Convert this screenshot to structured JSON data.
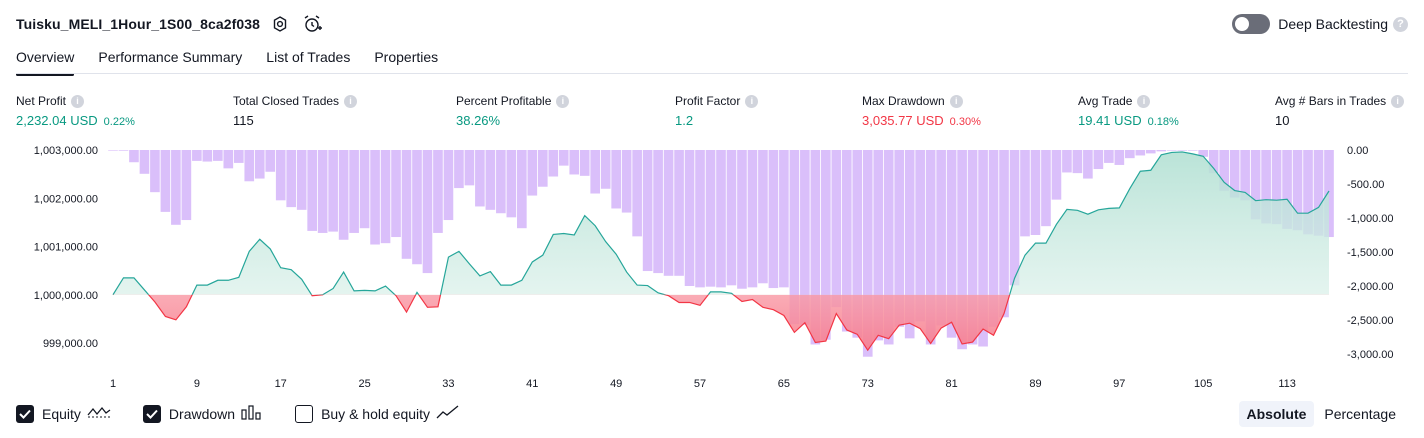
{
  "header": {
    "title": "Tuisku_MELI_1Hour_1S00_8ca2f038",
    "icons": [
      "settings-icon",
      "alarm-add-icon"
    ],
    "deep_backtesting_label": "Deep Backtesting",
    "deep_backtesting_enabled": false,
    "help_glyph": "?"
  },
  "tabs": [
    {
      "label": "Overview",
      "active": true
    },
    {
      "label": "Performance Summary",
      "active": false
    },
    {
      "label": "List of Trades",
      "active": false
    },
    {
      "label": "Properties",
      "active": false
    }
  ],
  "metrics": {
    "info_glyph": "i",
    "net_profit": {
      "label": "Net Profit",
      "value": "2,232.04 USD",
      "pct": "0.22%"
    },
    "total_closed_trades": {
      "label": "Total Closed Trades",
      "value": "115"
    },
    "percent_profitable": {
      "label": "Percent Profitable",
      "value": "38.26%"
    },
    "profit_factor": {
      "label": "Profit Factor",
      "value": "1.2"
    },
    "max_drawdown": {
      "label": "Max Drawdown",
      "value": "3,035.77 USD",
      "pct": "0.30%"
    },
    "avg_trade": {
      "label": "Avg Trade",
      "value": "19.41 USD",
      "pct": "0.18%"
    },
    "avg_bars": {
      "label": "Avg # Bars in Trades",
      "value": "10"
    }
  },
  "colors": {
    "positive": "#089981",
    "negative": "#f23645",
    "drawdown_bar": "#d6b8fa",
    "equity_line": "#26a69a",
    "equity_fill": "#d5efe8"
  },
  "chart_data": {
    "type": "line",
    "x_ticks": [
      1,
      9,
      17,
      25,
      33,
      41,
      49,
      57,
      65,
      73,
      81,
      89,
      97,
      105,
      113
    ],
    "y_left_ticks": [
      "1,003,000.00",
      "1,002,000.00",
      "1,001,000.00",
      "1,000,000.00",
      "999,000.00"
    ],
    "y_left_values": [
      1003000,
      1002000,
      1001000,
      1000000,
      999000
    ],
    "y_right_ticks": [
      "0.00",
      "-500.00",
      "-1,000.00",
      "-1,500.00",
      "-2,000.00",
      "-2,500.00",
      "-3,000.00"
    ],
    "y_right_values": [
      0,
      -500,
      -1000,
      -1500,
      -2000,
      -2500,
      -3000
    ],
    "equity_baseline": 1000000,
    "series": [
      {
        "name": "Equity",
        "axis": "left",
        "values": [
          1000000,
          1000350,
          1000350,
          1000100,
          999850,
          999550,
          999480,
          999750,
          1000200,
          1000200,
          1000300,
          1000300,
          1000360,
          1000900,
          1001150,
          1000950,
          1000560,
          1000520,
          1000320,
          999980,
          1000000,
          1000130,
          1000470,
          1000080,
          1000090,
          1000080,
          1000180,
          999980,
          999640,
          1000050,
          999740,
          999750,
          1000780,
          1000900,
          1000640,
          1000390,
          1000480,
          1000200,
          1000200,
          1000300,
          1000680,
          1000820,
          1001250,
          1001270,
          1001240,
          1001640,
          1001430,
          1001100,
          1000840,
          1000470,
          1000200,
          1000190,
          1000040,
          999980,
          999840,
          999840,
          999780,
          1000060,
          1000060,
          1000030,
          999860,
          999900,
          999740,
          999690,
          999570,
          999220,
          999420,
          999010,
          999040,
          999610,
          999270,
          999180,
          998850,
          999160,
          999090,
          999370,
          999410,
          999300,
          998990,
          999310,
          999430,
          998980,
          999020,
          999290,
          999160,
          999610,
          1000340,
          1000820,
          1001070,
          1001070,
          1001460,
          1001770,
          1001750,
          1001670,
          1001760,
          1001790,
          1001800,
          1002200,
          1002560,
          1002580,
          1002900,
          1002950,
          1002960,
          1002920,
          1002870,
          1002620,
          1002330,
          1002160,
          1002120,
          1001950,
          1001970,
          1001960,
          1001980,
          1001690,
          1001690,
          1001810,
          1002150
        ]
      },
      {
        "name": "Drawdown",
        "axis": "right",
        "values": [
          0,
          -10,
          -180,
          -350,
          -620,
          -910,
          -1100,
          -1030,
          -160,
          -170,
          -160,
          -270,
          -190,
          -460,
          -420,
          -320,
          -740,
          -840,
          -880,
          -1190,
          -1220,
          -1200,
          -1320,
          -1220,
          -1150,
          -1390,
          -1370,
          -1280,
          -1600,
          -1680,
          -1810,
          -1220,
          -1030,
          -560,
          -520,
          -830,
          -880,
          -930,
          -990,
          -1150,
          -670,
          -540,
          -390,
          -230,
          -360,
          -380,
          -640,
          -570,
          -860,
          -920,
          -1270,
          -1780,
          -1810,
          -1850,
          -1850,
          -2000,
          -2020,
          -2010,
          -2020,
          -1990,
          -2040,
          -2020,
          -1960,
          -2030,
          -2020,
          -2560,
          -2570,
          -2860,
          -2790,
          -2310,
          -2670,
          -2760,
          -3040,
          -2800,
          -2860,
          -2600,
          -2770,
          -2520,
          -2860,
          -2580,
          -2760,
          -2930,
          -2860,
          -2890,
          -2600,
          -2460,
          -1990,
          -1270,
          -1250,
          -1120,
          -730,
          -330,
          -340,
          -420,
          -280,
          -190,
          -220,
          -120,
          -80,
          -50,
          -20,
          0,
          0,
          0,
          -100,
          -340,
          -600,
          -700,
          -740,
          -1020,
          -1080,
          -1090,
          -1160,
          -1180,
          -1240,
          -1260,
          -1280
        ]
      }
    ],
    "buy_hold_visible": false
  },
  "legend": {
    "equity_label": "Equity",
    "drawdown_label": "Drawdown",
    "buyhold_label": "Buy & hold equity",
    "equity_checked": true,
    "drawdown_checked": true,
    "buyhold_checked": false
  },
  "mode": {
    "absolute_label": "Absolute",
    "percentage_label": "Percentage",
    "active": "absolute"
  }
}
